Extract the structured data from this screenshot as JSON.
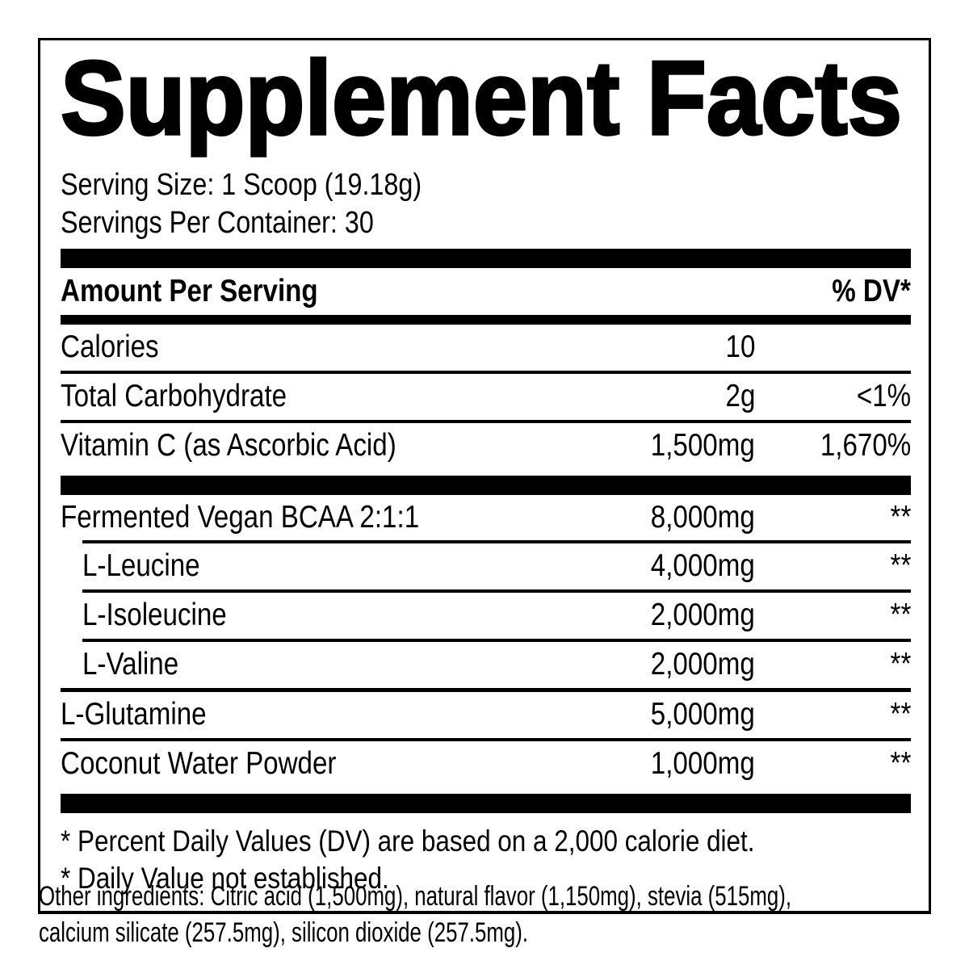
{
  "title": "Supplement Facts",
  "serving": {
    "line1": "Serving Size: 1 Scoop (19.18g)",
    "line2": "Servings Per Container: 30"
  },
  "table": {
    "header": {
      "amount_label": "Amount Per Serving",
      "dv_label": "% DV*"
    },
    "rows": [
      {
        "name": "Calories",
        "amount": "10",
        "dv": ""
      },
      {
        "name": "Total Carbohydrate",
        "amount": "2g",
        "dv": "<1%"
      },
      {
        "name": "Vitamin C (as Ascorbic Acid)",
        "amount": "1,500mg",
        "dv": "1,670%"
      },
      {
        "name": "Fermented Vegan BCAA 2:1:1",
        "amount": "8,000mg",
        "dv": "**"
      },
      {
        "name": "L-Leucine",
        "amount": "4,000mg",
        "dv": "**"
      },
      {
        "name": "L-Isoleucine",
        "amount": "2,000mg",
        "dv": "**"
      },
      {
        "name": "L-Valine",
        "amount": "2,000mg",
        "dv": "**"
      },
      {
        "name": "L-Glutamine",
        "amount": "5,000mg",
        "dv": "**"
      },
      {
        "name": "Coconut Water Powder",
        "amount": "1,000mg",
        "dv": "**"
      }
    ]
  },
  "footnotes": [
    "* Percent Daily Values (DV) are based on a 2,000 calorie diet.",
    "* Daily Value not established."
  ],
  "other_ingredients": {
    "line1": "Other ingredients:  Citric acid (1,500mg), natural flavor (1,150mg), stevia (515mg),",
    "line2": "calcium silicate (257.5mg), silicon dioxide (257.5mg)."
  },
  "colors": {
    "ink": "#000000",
    "background": "#ffffff"
  }
}
